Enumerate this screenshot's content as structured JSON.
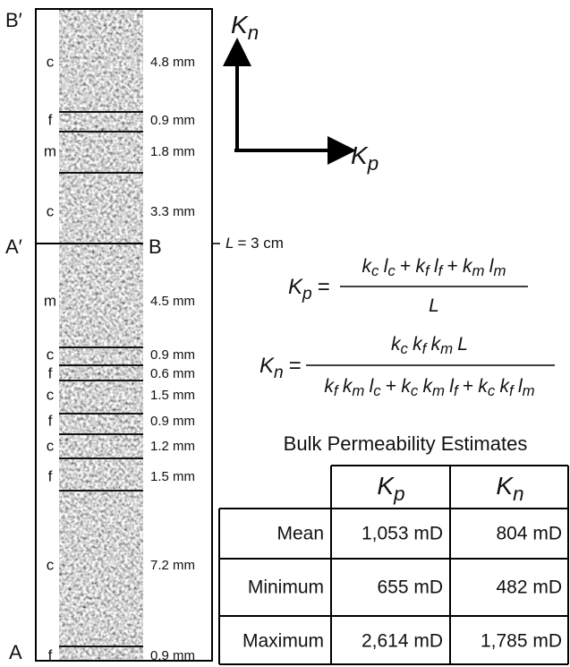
{
  "section_labels": {
    "top_left": "B′",
    "middle_left": "A′",
    "bottom_left": "A",
    "middle_right": "B"
  },
  "length_label": {
    "variable": "L",
    "text": "= 3 cm"
  },
  "axes": {
    "vertical": {
      "base": "K",
      "sub": "n"
    },
    "horizontal": {
      "base": "K",
      "sub": "p"
    }
  },
  "layers": [
    {
      "type": "c",
      "thickness": "4.8 mm"
    },
    {
      "type": "f",
      "thickness": "0.9 mm"
    },
    {
      "type": "m",
      "thickness": "1.8 mm"
    },
    {
      "type": "c",
      "thickness": "3.3 mm"
    },
    {
      "type": "m",
      "thickness": "4.5 mm"
    },
    {
      "type": "c",
      "thickness": "0.9 mm"
    },
    {
      "type": "f",
      "thickness": "0.6 mm"
    },
    {
      "type": "c",
      "thickness": "1.5 mm"
    },
    {
      "type": "f",
      "thickness": "0.9 mm"
    },
    {
      "type": "c",
      "thickness": "1.2 mm"
    },
    {
      "type": "f",
      "thickness": "1.5 mm"
    },
    {
      "type": "c",
      "thickness": "7.2 mm"
    },
    {
      "type": "f",
      "thickness": "0.9 mm"
    }
  ],
  "equations": [
    {
      "lhs": {
        "base": "K",
        "sub": "p"
      },
      "equals": "=",
      "numerator": [
        {
          "base": "k",
          "sub": "c"
        },
        {
          "base": "l",
          "sub": "c"
        },
        "+",
        {
          "base": "k",
          "sub": "f"
        },
        {
          "base": "l",
          "sub": "f"
        },
        "+",
        {
          "base": "k",
          "sub": "m"
        },
        {
          "base": "l",
          "sub": "m"
        }
      ],
      "denominator": [
        {
          "base": "L"
        }
      ]
    },
    {
      "lhs": {
        "base": "K",
        "sub": "n"
      },
      "equals": "=",
      "numerator": [
        {
          "base": "k",
          "sub": "c"
        },
        {
          "base": "k",
          "sub": "f"
        },
        {
          "base": "k",
          "sub": "m"
        },
        {
          "base": "L"
        }
      ],
      "denominator": [
        {
          "base": "k",
          "sub": "f"
        },
        {
          "base": "k",
          "sub": "m"
        },
        {
          "base": "l",
          "sub": "c"
        },
        "+",
        {
          "base": "k",
          "sub": "c"
        },
        {
          "base": "k",
          "sub": "m"
        },
        {
          "base": "l",
          "sub": "f"
        },
        "+",
        {
          "base": "k",
          "sub": "c"
        },
        {
          "base": "k",
          "sub": "f"
        },
        {
          "base": "l",
          "sub": "m"
        }
      ]
    }
  ],
  "table": {
    "title": "Bulk Permeability Estimates",
    "header": [
      {
        "base": "K",
        "sub": "p"
      },
      {
        "base": "K",
        "sub": "n"
      }
    ],
    "rows": [
      [
        "Mean",
        "1,053 mD",
        "804 mD"
      ],
      [
        "Minimum",
        "655 mD",
        "482 mD"
      ],
      [
        "Maximum",
        "2,614 mD",
        "1,785 mD"
      ]
    ]
  }
}
